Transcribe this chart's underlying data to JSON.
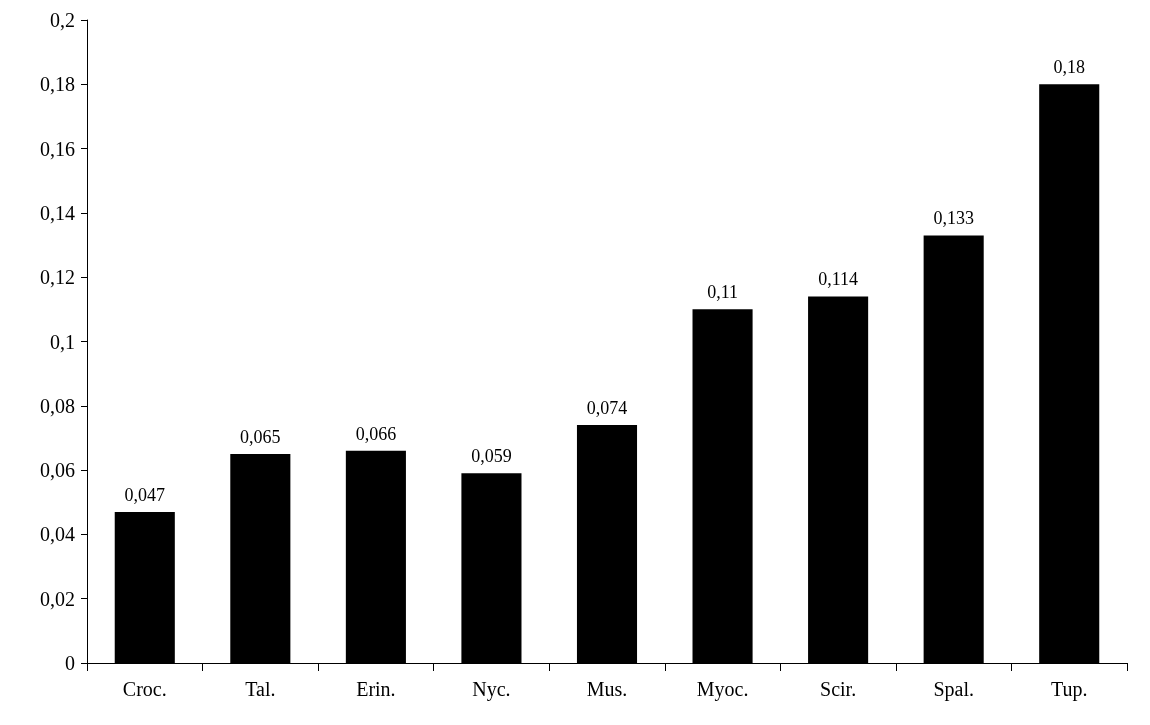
{
  "chart_data": {
    "type": "bar",
    "categories": [
      "Croc.",
      "Tal.",
      "Erin.",
      "Nyc.",
      "Mus.",
      "Myoc.",
      "Scir.",
      "Spal.",
      "Tup."
    ],
    "values": [
      0.047,
      0.065,
      0.066,
      0.059,
      0.074,
      0.11,
      0.114,
      0.133,
      0.18
    ],
    "value_labels": [
      "0,047",
      "0,065",
      "0,066",
      "0,059",
      "0,074",
      "0,11",
      "0,114",
      "0,133",
      "0,18"
    ],
    "color": "#000000",
    "ylim": [
      0,
      0.2
    ],
    "yticks": [
      0,
      {
        "value": 0.02,
        "label": "0,02"
      },
      {
        "value": 0.04,
        "label": "0,04"
      },
      {
        "value": 0.06,
        "label": "0,06"
      },
      {
        "value": 0.08,
        "label": "0,08"
      },
      {
        "value": 0.1,
        "label": "0,1"
      },
      {
        "value": 0.12,
        "label": "0,12"
      },
      {
        "value": 0.14,
        "label": "0,14"
      },
      {
        "value": 0.16,
        "label": "0,16"
      },
      {
        "value": 0.18,
        "label": "0,18"
      },
      {
        "value": 0.2,
        "label": "0,2"
      }
    ],
    "grid": false
  }
}
